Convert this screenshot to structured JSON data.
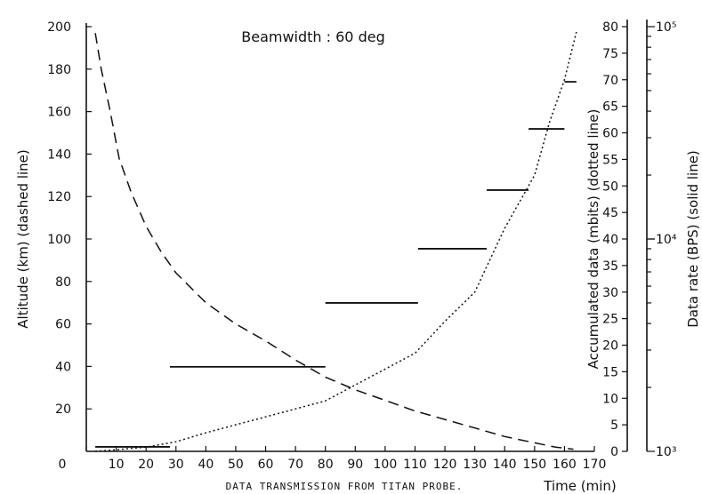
{
  "chart_data": {
    "type": "line",
    "title": "Beamwidth : 60 deg",
    "caption": "DATA TRANSMISSION FROM TITAN PROBE.",
    "xlabel": "Time (min)",
    "xlim": [
      0,
      170
    ],
    "xticks": [
      0,
      10,
      20,
      30,
      40,
      50,
      60,
      70,
      80,
      90,
      100,
      110,
      120,
      130,
      140,
      150,
      160,
      170
    ],
    "y_left": {
      "label": "Altitude (km) (dashed line)",
      "lim": [
        0,
        200
      ],
      "ticks": [
        20,
        40,
        60,
        80,
        100,
        120,
        140,
        160,
        180,
        200
      ]
    },
    "y_right_inner": {
      "label": "Accumulated data (mbits) (dotted line)",
      "lim": [
        0,
        80
      ],
      "ticks": [
        0,
        5,
        10,
        15,
        20,
        25,
        30,
        35,
        40,
        45,
        50,
        55,
        60,
        65,
        70,
        75,
        80
      ]
    },
    "y_right_outer": {
      "label": "Data rate (BPS) (solid line)",
      "scale": "log",
      "lim": [
        1000,
        100000
      ],
      "tick_labels": [
        "10³",
        "10⁴",
        "10⁵"
      ],
      "tick_values": [
        1000,
        10000,
        100000
      ]
    },
    "series": [
      {
        "name": "Altitude",
        "style": "dashed",
        "axis": "left",
        "x": [
          3,
          5,
          8,
          11,
          15,
          20,
          25,
          30,
          40,
          50,
          60,
          70,
          80,
          90,
          100,
          110,
          120,
          130,
          140,
          150,
          157,
          163
        ],
        "y": [
          197,
          180,
          160,
          138,
          122,
          106,
          94,
          84,
          70,
          60,
          52,
          43,
          35,
          29,
          24,
          19,
          15,
          11,
          7,
          4,
          2,
          1
        ]
      },
      {
        "name": "Accumulated data",
        "style": "dotted",
        "axis": "right_inner",
        "x": [
          3,
          10,
          20,
          30,
          40,
          50,
          60,
          70,
          80,
          90,
          100,
          110,
          120,
          130,
          140,
          150,
          155,
          160,
          164
        ],
        "y": [
          0,
          0.3,
          0.8,
          1.8,
          3.5,
          5,
          6.5,
          8,
          9.5,
          12.5,
          15.5,
          18.5,
          24.5,
          30,
          42,
          52,
          62,
          70,
          79
        ]
      },
      {
        "name": "Data rate",
        "style": "step",
        "axis": "right_outer",
        "segments": [
          {
            "x0": 3,
            "x1": 28,
            "y": 1050
          },
          {
            "x0": 28,
            "x1": 80,
            "y": 2500
          },
          {
            "x0": 80,
            "x1": 111,
            "y": 5000
          },
          {
            "x0": 111,
            "x1": 134,
            "y": 9000
          },
          {
            "x0": 134,
            "x1": 148,
            "y": 17000
          },
          {
            "x0": 148,
            "x1": 160,
            "y": 33000
          },
          {
            "x0": 160,
            "x1": 164,
            "y": 55000
          }
        ]
      }
    ],
    "grid": false
  }
}
